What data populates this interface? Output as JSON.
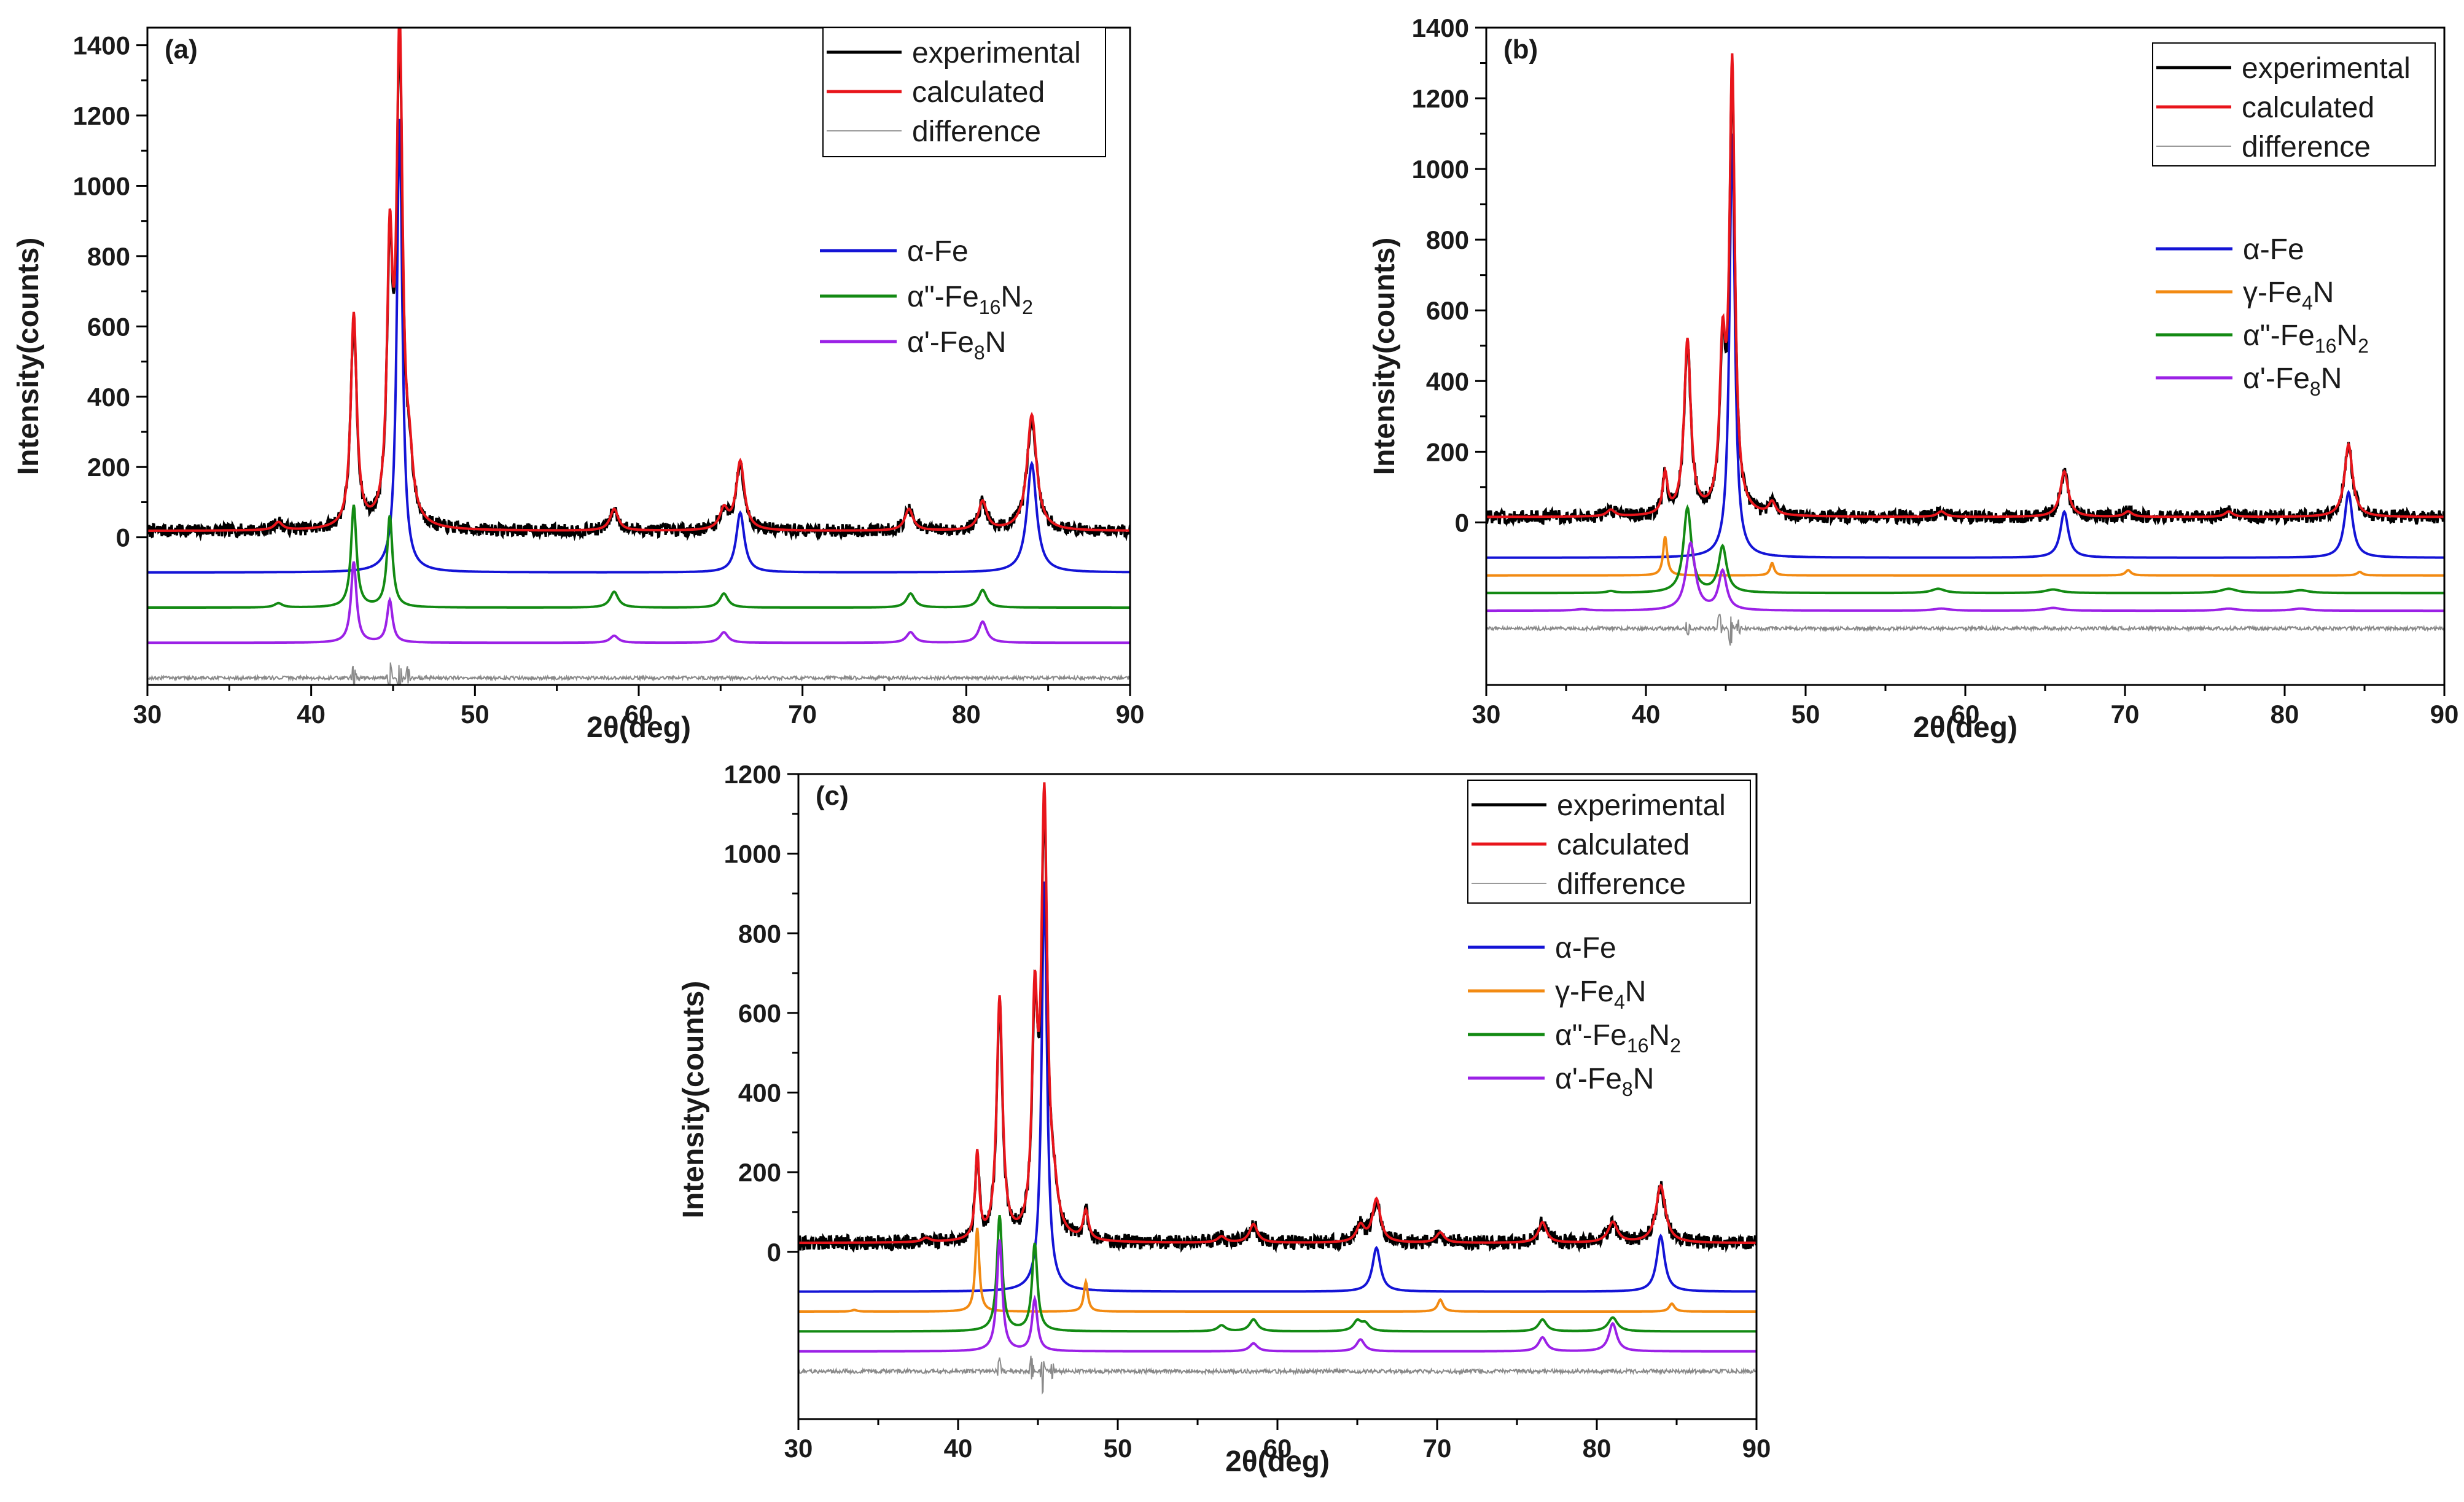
{
  "chart_data": [
    {
      "type": "line",
      "panel_label": "(a)",
      "xlabel": "2θ(deg)",
      "ylabel": "Intensity(counts)",
      "xlim": [
        30,
        90
      ],
      "ylim": [
        -420,
        1450
      ],
      "x_ticks": [
        30,
        40,
        50,
        60,
        70,
        80,
        90
      ],
      "y_ticks": [
        0,
        200,
        400,
        600,
        800,
        1000,
        1200,
        1400
      ],
      "legend_top": [
        {
          "label": "experimental",
          "color": "#000000"
        },
        {
          "label": "calculated",
          "color": "#e8151b"
        },
        {
          "label": "difference",
          "color": "#9a9a9a"
        }
      ],
      "legend_phases": [
        {
          "label": "α-Fe",
          "color": "#1414d6",
          "symbol": "α",
          "base": "-Fe",
          "sub1": "",
          "tail": "",
          "sub2": ""
        },
        {
          "label": "α\"-Fe16N2",
          "color": "#138a13",
          "symbol": "α",
          "base": "\"-Fe",
          "sub1": "16",
          "tail": "N",
          "sub2": "2"
        },
        {
          "label": "α'-Fe8N",
          "color": "#9b21e6",
          "symbol": "α",
          "base": "'-Fe",
          "sub1": "8",
          "tail": "N",
          "sub2": ""
        }
      ],
      "observed": {
        "baseline": 18,
        "peaks": [
          [
            38.0,
            22,
            0.3
          ],
          [
            42.6,
            590,
            0.22
          ],
          [
            44.8,
            720,
            0.2
          ],
          [
            45.4,
            1340,
            0.22
          ],
          [
            46.0,
            130,
            0.25
          ],
          [
            58.5,
            60,
            0.3
          ],
          [
            65.2,
            55,
            0.3
          ],
          [
            66.2,
            190,
            0.3
          ],
          [
            76.5,
            60,
            0.3
          ],
          [
            81.0,
            80,
            0.3
          ],
          [
            84.0,
            320,
            0.35
          ]
        ]
      },
      "components": [
        {
          "name": "α-Fe",
          "color": "#1414d6",
          "offset": -100,
          "peaks": [
            [
              45.4,
              1290,
              0.2
            ],
            [
              66.2,
              170,
              0.3
            ],
            [
              84.0,
              310,
              0.35
            ]
          ]
        },
        {
          "name": "α\"-Fe16N2",
          "color": "#138a13",
          "offset": -200,
          "peaks": [
            [
              38.0,
              12,
              0.3
            ],
            [
              42.6,
              290,
              0.2
            ],
            [
              44.8,
              260,
              0.2
            ],
            [
              58.5,
              45,
              0.3
            ],
            [
              65.2,
              40,
              0.3
            ],
            [
              76.6,
              40,
              0.3
            ],
            [
              81.0,
              50,
              0.3
            ]
          ]
        },
        {
          "name": "α'-Fe8N",
          "color": "#9b21e6",
          "offset": -300,
          "peaks": [
            [
              42.6,
              230,
              0.2
            ],
            [
              44.8,
              120,
              0.2
            ],
            [
              58.5,
              20,
              0.3
            ],
            [
              65.2,
              30,
              0.3
            ],
            [
              76.6,
              30,
              0.3
            ],
            [
              81.0,
              60,
              0.3
            ]
          ]
        }
      ],
      "difference": {
        "offset": -400,
        "wiggles": [
          [
            42.6,
            40
          ],
          [
            44.8,
            50
          ],
          [
            45.4,
            -60
          ],
          [
            45.9,
            30
          ]
        ]
      }
    },
    {
      "type": "line",
      "panel_label": "(b)",
      "xlabel": "2θ(deg)",
      "ylabel": "Intensity(counts)",
      "xlim": [
        30,
        90
      ],
      "ylim": [
        -460,
        1400
      ],
      "x_ticks": [
        30,
        40,
        50,
        60,
        70,
        80,
        90
      ],
      "y_ticks": [
        0,
        200,
        400,
        600,
        800,
        1000,
        1200,
        1400
      ],
      "legend_top": [
        {
          "label": "experimental",
          "color": "#000000"
        },
        {
          "label": "calculated",
          "color": "#e8151b"
        },
        {
          "label": "difference",
          "color": "#9a9a9a"
        }
      ],
      "legend_phases": [
        {
          "label": "α-Fe",
          "color": "#1414d6",
          "symbol": "α",
          "base": "-Fe",
          "sub1": "",
          "tail": "",
          "sub2": ""
        },
        {
          "label": "γ-Fe4N",
          "color": "#f28a12",
          "symbol": "γ",
          "base": "-Fe",
          "sub1": "4",
          "tail": "N",
          "sub2": ""
        },
        {
          "label": "α\"-Fe16N2",
          "color": "#138a13",
          "symbol": "α",
          "base": "\"-Fe",
          "sub1": "16",
          "tail": "N",
          "sub2": "2"
        },
        {
          "label": "α'-Fe8N",
          "color": "#9b21e6",
          "symbol": "α",
          "base": "'-Fe",
          "sub1": "8",
          "tail": "N",
          "sub2": ""
        }
      ],
      "observed": {
        "baseline": 15,
        "peaks": [
          [
            37.8,
            18,
            0.3
          ],
          [
            41.2,
            110,
            0.18
          ],
          [
            42.6,
            480,
            0.25
          ],
          [
            44.8,
            420,
            0.22
          ],
          [
            45.4,
            1220,
            0.2
          ],
          [
            47.9,
            35,
            0.25
          ],
          [
            58.5,
            15,
            0.3
          ],
          [
            66.2,
            125,
            0.3
          ],
          [
            70.2,
            15,
            0.3
          ],
          [
            76.5,
            15,
            0.3
          ],
          [
            84.0,
            200,
            0.3
          ]
        ]
      },
      "components": [
        {
          "name": "α-Fe",
          "color": "#1414d6",
          "offset": -100,
          "peaks": [
            [
              45.4,
              1200,
              0.2
            ],
            [
              66.2,
              130,
              0.3
            ],
            [
              84.0,
              185,
              0.3
            ]
          ]
        },
        {
          "name": "γ-Fe4N",
          "color": "#f28a12",
          "offset": -150,
          "peaks": [
            [
              41.2,
              110,
              0.15
            ],
            [
              47.9,
              35,
              0.15
            ],
            [
              70.2,
              15,
              0.2
            ],
            [
              84.7,
              10,
              0.2
            ]
          ]
        },
        {
          "name": "α\"-Fe16N2",
          "color": "#138a13",
          "offset": -200,
          "peaks": [
            [
              37.8,
              5,
              0.3
            ],
            [
              42.6,
              240,
              0.3
            ],
            [
              44.8,
              130,
              0.3
            ],
            [
              58.3,
              12,
              0.5
            ],
            [
              65.5,
              10,
              0.6
            ],
            [
              76.5,
              12,
              0.6
            ],
            [
              81.0,
              8,
              0.6
            ]
          ]
        },
        {
          "name": "α'-Fe8N",
          "color": "#9b21e6",
          "offset": -250,
          "peaks": [
            [
              42.8,
              190,
              0.35
            ],
            [
              44.8,
              110,
              0.3
            ],
            [
              36.0,
              4,
              0.5
            ],
            [
              58.5,
              6,
              0.6
            ],
            [
              65.5,
              8,
              0.6
            ],
            [
              76.5,
              6,
              0.6
            ],
            [
              81.0,
              6,
              0.6
            ]
          ]
        }
      ],
      "difference": {
        "offset": -300,
        "wiggles": [
          [
            42.6,
            30
          ],
          [
            44.6,
            40
          ],
          [
            45.3,
            -50
          ],
          [
            45.8,
            25
          ]
        ]
      }
    },
    {
      "type": "line",
      "panel_label": "(c)",
      "xlabel": "2θ(deg)",
      "ylabel": "Intensity(counts)",
      "xlim": [
        30,
        90
      ],
      "ylim": [
        -420,
        1200
      ],
      "x_ticks": [
        30,
        40,
        50,
        60,
        70,
        80,
        90
      ],
      "y_ticks": [
        0,
        200,
        400,
        600,
        800,
        1000,
        1200
      ],
      "legend_top": [
        {
          "label": "experimental",
          "color": "#000000"
        },
        {
          "label": "calculated",
          "color": "#e8151b"
        },
        {
          "label": "difference",
          "color": "#9a9a9a"
        }
      ],
      "legend_phases": [
        {
          "label": "α-Fe",
          "color": "#1414d6",
          "symbol": "α",
          "base": "-Fe",
          "sub1": "",
          "tail": "",
          "sub2": ""
        },
        {
          "label": "γ-Fe4N",
          "color": "#f28a12",
          "symbol": "γ",
          "base": "-Fe",
          "sub1": "4",
          "tail": "N",
          "sub2": ""
        },
        {
          "label": "α\"-Fe16N2",
          "color": "#138a13",
          "symbol": "α",
          "base": "\"-Fe",
          "sub1": "16",
          "tail": "N",
          "sub2": "2"
        },
        {
          "label": "α'-Fe8N",
          "color": "#9b21e6",
          "symbol": "α",
          "base": "'-Fe",
          "sub1": "8",
          "tail": "N",
          "sub2": ""
        }
      ],
      "observed": {
        "baseline": 22,
        "peaks": [
          [
            38.0,
            10,
            0.3
          ],
          [
            41.2,
            210,
            0.15
          ],
          [
            42.6,
            590,
            0.22
          ],
          [
            44.8,
            530,
            0.2
          ],
          [
            45.4,
            1050,
            0.22
          ],
          [
            46.0,
            80,
            0.3
          ],
          [
            48.0,
            70,
            0.2
          ],
          [
            56.5,
            15,
            0.3
          ],
          [
            58.5,
            45,
            0.3
          ],
          [
            65.2,
            40,
            0.3
          ],
          [
            66.2,
            105,
            0.3
          ],
          [
            70.2,
            25,
            0.3
          ],
          [
            76.6,
            50,
            0.3
          ],
          [
            81.0,
            50,
            0.35
          ],
          [
            84.0,
            140,
            0.35
          ]
        ]
      },
      "components": [
        {
          "name": "α-Fe",
          "color": "#1414d6",
          "offset": -100,
          "peaks": [
            [
              45.4,
              1030,
              0.2
            ],
            [
              66.2,
              110,
              0.3
            ],
            [
              84.0,
              140,
              0.3
            ]
          ]
        },
        {
          "name": "γ-Fe4N",
          "color": "#f28a12",
          "offset": -150,
          "peaks": [
            [
              41.2,
              210,
              0.15
            ],
            [
              48.0,
              75,
              0.15
            ],
            [
              70.2,
              30,
              0.2
            ],
            [
              84.7,
              20,
              0.2
            ],
            [
              33.5,
              4,
              0.2
            ]
          ]
        },
        {
          "name": "α\"-Fe16N2",
          "color": "#138a13",
          "offset": -200,
          "peaks": [
            [
              42.6,
              290,
              0.2
            ],
            [
              44.8,
              220,
              0.2
            ],
            [
              56.5,
              15,
              0.3
            ],
            [
              58.5,
              30,
              0.3
            ],
            [
              65.0,
              25,
              0.3
            ],
            [
              65.5,
              18,
              0.3
            ],
            [
              76.6,
              30,
              0.3
            ],
            [
              81.0,
              35,
              0.35
            ]
          ]
        },
        {
          "name": "α'-Fe8N",
          "color": "#9b21e6",
          "offset": -250,
          "peaks": [
            [
              42.6,
              280,
              0.2
            ],
            [
              44.8,
              130,
              0.2
            ],
            [
              58.5,
              20,
              0.3
            ],
            [
              65.2,
              30,
              0.3
            ],
            [
              76.6,
              35,
              0.3
            ],
            [
              81.0,
              70,
              0.3
            ]
          ]
        }
      ],
      "difference": {
        "offset": -300,
        "wiggles": [
          [
            42.6,
            30
          ],
          [
            44.6,
            40
          ],
          [
            45.3,
            -55
          ],
          [
            45.9,
            25
          ]
        ]
      }
    }
  ]
}
